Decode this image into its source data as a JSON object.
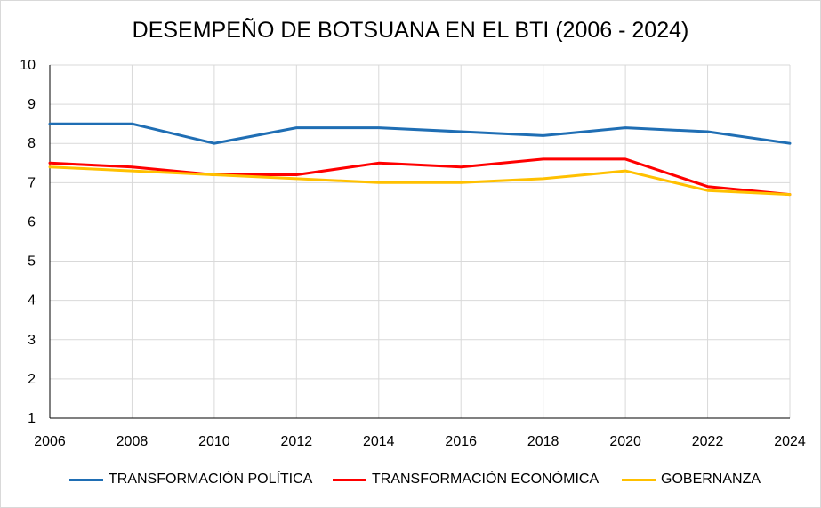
{
  "chart_data": {
    "type": "line",
    "title": "DESEMPEÑO DE BOTSUANA EN EL BTI (2006 - 2024)",
    "xlabel": "",
    "ylabel": "",
    "x": [
      "2006",
      "2008",
      "2010",
      "2012",
      "2014",
      "2016",
      "2018",
      "2020",
      "2022",
      "2024"
    ],
    "ylim": [
      1,
      10
    ],
    "yticks": [
      "1",
      "2",
      "3",
      "4",
      "5",
      "6",
      "7",
      "8",
      "9",
      "10"
    ],
    "grid": true,
    "legend_position": "bottom",
    "series": [
      {
        "name": "TRANSFORMACIÓN POLÍTICA",
        "color": "#1f6eb4",
        "values": [
          8.5,
          8.5,
          8.0,
          8.4,
          8.4,
          8.3,
          8.2,
          8.4,
          8.3,
          8.0
        ]
      },
      {
        "name": "TRANSFORMACIÓN ECONÓMICA",
        "color": "#ff0000",
        "values": [
          7.5,
          7.4,
          7.2,
          7.2,
          7.5,
          7.4,
          7.6,
          7.6,
          6.9,
          6.7
        ]
      },
      {
        "name": "GOBERNANZA",
        "color": "#ffc000",
        "values": [
          7.4,
          7.3,
          7.2,
          7.1,
          7.0,
          7.0,
          7.1,
          7.3,
          6.8,
          6.7
        ]
      }
    ]
  }
}
